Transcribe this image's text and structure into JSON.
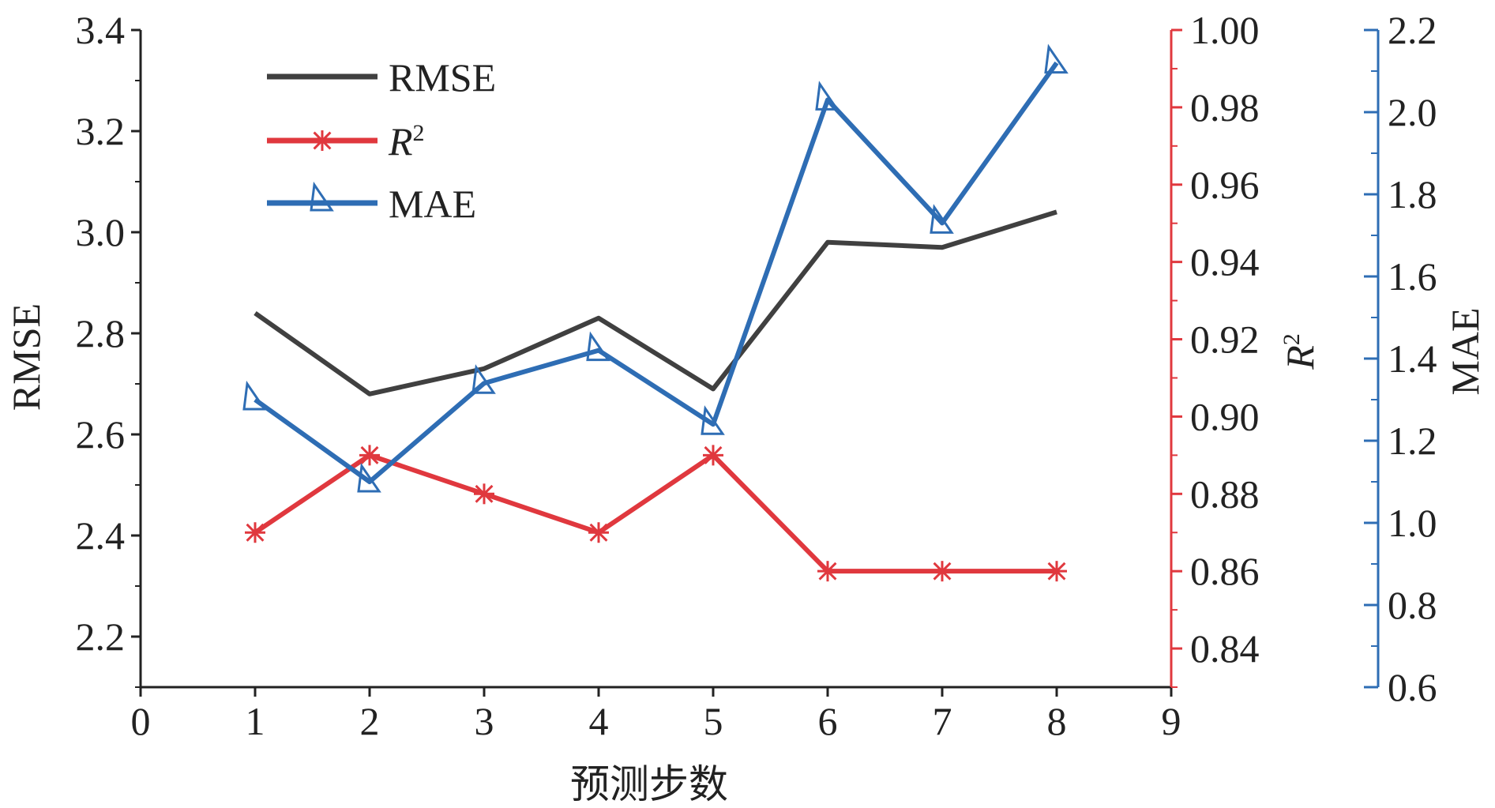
{
  "chart_data": {
    "type": "line",
    "xlabel": "预测步数",
    "x": [
      1,
      2,
      3,
      4,
      5,
      6,
      7,
      8
    ],
    "xlim": [
      0,
      9
    ],
    "x_ticks": [
      "0",
      "1",
      "2",
      "3",
      "4",
      "5",
      "6",
      "7",
      "8",
      "9"
    ],
    "grid": false,
    "legend_position": "top-left",
    "axes": {
      "left": {
        "label": "RMSE",
        "range": [
          2.1,
          3.4
        ],
        "ticks": [
          "2.2",
          "2.4",
          "2.6",
          "2.8",
          "3.0",
          "3.2",
          "3.4"
        ],
        "color": "#222222"
      },
      "right1": {
        "label_main": "R",
        "label_sup": "2",
        "range": [
          0.83,
          1.0
        ],
        "ticks": [
          "0.84",
          "0.86",
          "0.88",
          "0.90",
          "0.92",
          "0.94",
          "0.96",
          "0.98",
          "1.00"
        ],
        "color": "#e0383e"
      },
      "right2": {
        "label": "MAE",
        "range": [
          0.6,
          2.2
        ],
        "ticks": [
          "0.6",
          "0.8",
          "1.0",
          "1.2",
          "1.4",
          "1.6",
          "1.8",
          "2.0",
          "2.2"
        ],
        "color": "#2e6db4"
      }
    },
    "series": [
      {
        "key": "rmse",
        "name": "RMSE",
        "axis": "left",
        "color": "#404040",
        "marker": "none",
        "values": [
          2.84,
          2.68,
          2.73,
          2.83,
          2.69,
          2.98,
          2.97,
          3.04
        ]
      },
      {
        "key": "r2",
        "name_main": "R",
        "name_sup": "2",
        "axis": "right1",
        "color": "#e0383e",
        "marker": "asterisk",
        "values": [
          0.87,
          0.89,
          0.88,
          0.87,
          0.89,
          0.86,
          0.86,
          0.86
        ]
      },
      {
        "key": "mae",
        "name": "MAE",
        "axis": "right2",
        "color": "#2e6db4",
        "marker": "triangle",
        "values": [
          1.3,
          1.1,
          1.34,
          1.42,
          1.24,
          2.03,
          1.73,
          2.12
        ]
      }
    ]
  }
}
